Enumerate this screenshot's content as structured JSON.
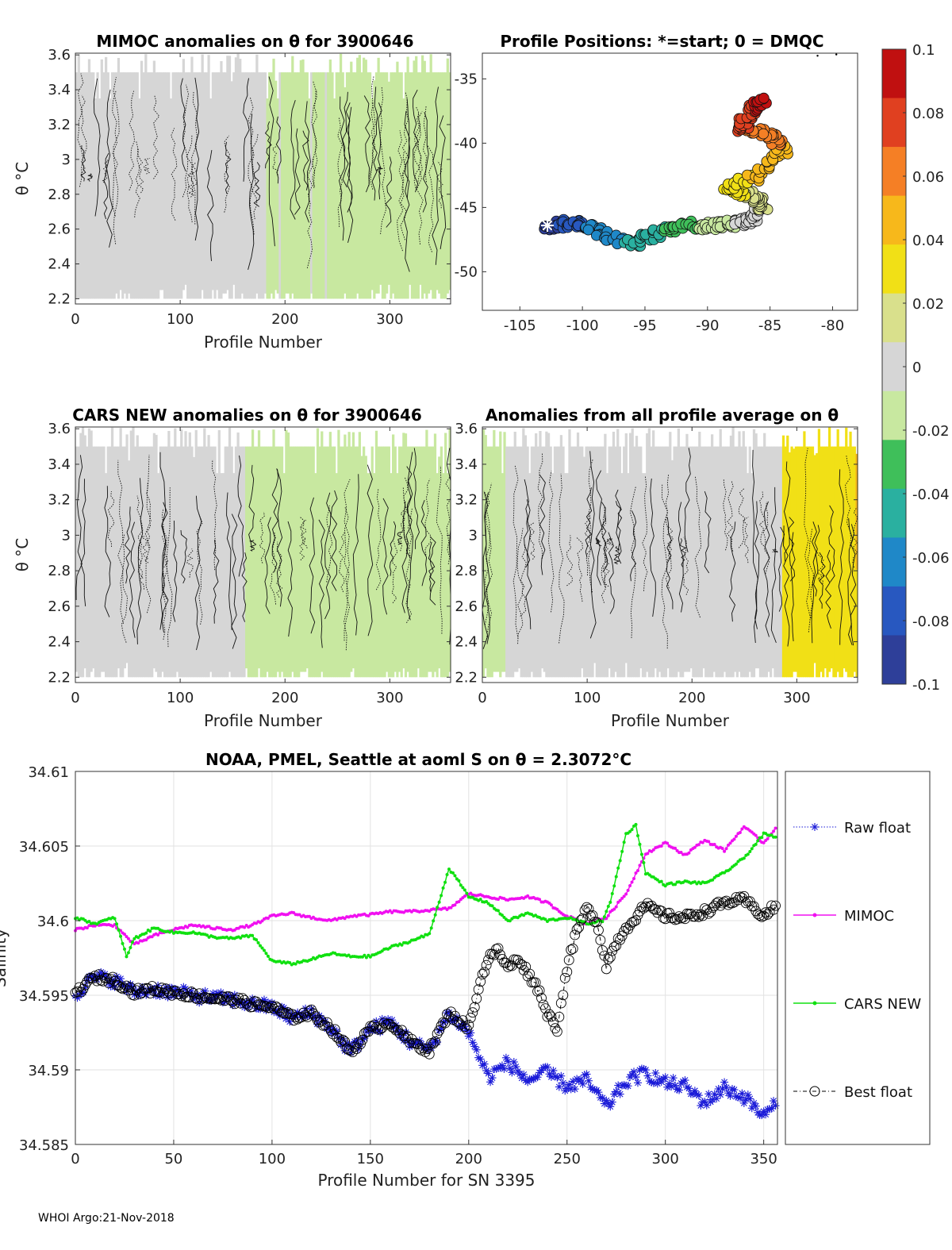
{
  "chart_data": [
    {
      "id": "mimoc",
      "type": "heatmap",
      "title": "MIMOC anomalies on θ  for 3900646",
      "xlabel": "Profile Number",
      "ylabel": "θ °C",
      "xlim": [
        0,
        358
      ],
      "ylim": [
        2.17,
        3.61
      ],
      "xticks": [
        0,
        100,
        200,
        300
      ],
      "yticks": [
        2.2,
        2.4,
        2.6,
        2.8,
        3,
        3.2,
        3.4,
        3.6
      ],
      "field_summary": [
        {
          "from": 0,
          "to": 180,
          "anomaly": 0.0
        },
        {
          "from": 180,
          "to": 300,
          "anomaly": -0.01
        },
        {
          "from": 300,
          "to": 358,
          "anomaly": -0.017
        }
      ]
    },
    {
      "id": "positions",
      "type": "scatter",
      "title": "Profile Positions: *=start; 0 = DMQC",
      "xlim": [
        -108,
        -78
      ],
      "ylim": [
        -53,
        -33
      ],
      "xticks": [
        -105,
        -100,
        -95,
        -90,
        -85,
        -80
      ],
      "yticks": [
        -35,
        -40,
        -45,
        -50
      ],
      "waypoints_lon": [
        -102.8,
        -101.5,
        -100,
        -98,
        -96,
        -94,
        -92,
        -90,
        -88,
        -86.5,
        -85.5,
        -86.8,
        -88.5,
        -86,
        -84,
        -85.2,
        -87.5,
        -86.5,
        -85.5
      ],
      "waypoints_lat": [
        -46.4,
        -46.3,
        -46.2,
        -47.2,
        -47.8,
        -47.0,
        -46.3,
        -46.5,
        -46.2,
        -46.0,
        -44.8,
        -44.0,
        -43.5,
        -42.5,
        -40.5,
        -39.2,
        -38.8,
        -37.5,
        -36.5
      ],
      "start_marker": [
        -102.8,
        -46.4
      ]
    },
    {
      "id": "cars",
      "type": "heatmap",
      "title": "CARS NEW anomalies on θ for 3900646",
      "xlabel": "Profile Number",
      "ylabel": "θ °C",
      "xlim": [
        0,
        358
      ],
      "ylim": [
        2.17,
        3.61
      ],
      "xticks": [
        0,
        100,
        200,
        300
      ],
      "yticks": [
        2.2,
        2.4,
        2.6,
        2.8,
        3,
        3.2,
        3.4,
        3.6
      ],
      "field_summary": [
        {
          "from": 0,
          "to": 160,
          "anomaly": 0.0
        },
        {
          "from": 160,
          "to": 358,
          "anomaly": -0.012
        }
      ]
    },
    {
      "id": "profileavg",
      "type": "heatmap",
      "title": "Anomalies from all profile average on θ",
      "xlabel": "Profile Number",
      "xlim": [
        0,
        358
      ],
      "ylim": [
        2.17,
        3.61
      ],
      "xticks": [
        0,
        100,
        200,
        300
      ],
      "yticks": [
        2.2,
        2.4,
        2.6,
        2.8,
        3,
        3.2,
        3.4,
        3.6
      ],
      "field_summary": [
        {
          "from": 0,
          "to": 20,
          "anomaly": -0.012
        },
        {
          "from": 20,
          "to": 285,
          "anomaly": 0.0
        },
        {
          "from": 285,
          "to": 358,
          "anomaly": 0.035
        }
      ]
    },
    {
      "id": "colorbar",
      "type": "colorbar",
      "clim": [
        -0.1,
        0.1
      ],
      "ticks": [
        "0.1",
        "0.08",
        "0.06",
        "0.04",
        "0.02",
        "0",
        "-0.02",
        "-0.04",
        "-0.06",
        "-0.08",
        "-0.1"
      ],
      "colors": [
        "#c01010",
        "#e04020",
        "#f57f25",
        "#f7b81b",
        "#f1e016",
        "#d9e08c",
        "#d6d6d6",
        "#c8e8a0",
        "#3fbf5a",
        "#2ab0a0",
        "#1f88c8",
        "#2858c0",
        "#2e3f99"
      ]
    },
    {
      "id": "salinity",
      "type": "line",
      "title": "NOAA, PMEL, Seattle at aoml S on θ = 2.3072°C",
      "xlabel": "Profile Number for SN 3395",
      "ylabel": "Salinity",
      "xlim": [
        0,
        357
      ],
      "ylim": [
        34.585,
        34.61
      ],
      "xticks": [
        0,
        50,
        100,
        150,
        200,
        250,
        300,
        350
      ],
      "yticks": [
        "34.585",
        "34.59",
        "34.595",
        "34.6",
        "34.605",
        "34.61"
      ],
      "grid": true,
      "legend_position": "right",
      "series": [
        {
          "name": "Raw float",
          "color": "#1a1ad8",
          "x": [
            0,
            5,
            10,
            20,
            30,
            40,
            50,
            60,
            70,
            80,
            90,
            100,
            110,
            120,
            130,
            140,
            150,
            160,
            170,
            180,
            190,
            200,
            210,
            220,
            230,
            240,
            250,
            260,
            270,
            280,
            290,
            300,
            310,
            320,
            330,
            340,
            350,
            356
          ],
          "y": [
            34.5951,
            34.5957,
            34.5962,
            34.596,
            34.5952,
            34.5954,
            34.5952,
            34.595,
            34.5948,
            34.5947,
            34.5944,
            34.5942,
            34.5935,
            34.5938,
            34.5928,
            34.5912,
            34.5927,
            34.5932,
            34.5919,
            34.5913,
            34.5938,
            34.5925,
            34.5895,
            34.5905,
            34.5893,
            34.5898,
            34.5889,
            34.5893,
            34.5875,
            34.5892,
            34.5898,
            34.5891,
            34.5889,
            34.5878,
            34.5888,
            34.5882,
            34.5869,
            34.5876
          ]
        },
        {
          "name": "MIMOC",
          "color": "#f010f0",
          "x": [
            0,
            10,
            20,
            30,
            40,
            50,
            60,
            70,
            80,
            90,
            100,
            110,
            120,
            130,
            140,
            150,
            160,
            170,
            180,
            190,
            200,
            210,
            220,
            230,
            240,
            250,
            260,
            270,
            280,
            290,
            300,
            310,
            320,
            330,
            340,
            350,
            356
          ],
          "y": [
            34.5994,
            34.5997,
            34.5997,
            34.5984,
            34.599,
            34.5994,
            34.5997,
            34.5995,
            34.5994,
            34.5997,
            34.6003,
            34.6005,
            34.6002,
            34.6,
            34.6003,
            34.6004,
            34.6006,
            34.6006,
            34.6007,
            34.6008,
            34.6018,
            34.6016,
            34.6014,
            34.6016,
            34.6012,
            34.6003,
            34.5998,
            34.6002,
            34.6018,
            34.6045,
            34.6052,
            34.6044,
            34.6054,
            34.6047,
            34.6063,
            34.6052,
            34.6062
          ]
        },
        {
          "name": "CARS NEW",
          "color": "#10e010",
          "x": [
            0,
            10,
            20,
            26,
            30,
            40,
            50,
            60,
            70,
            80,
            90,
            100,
            110,
            120,
            130,
            140,
            150,
            160,
            170,
            180,
            190,
            195,
            200,
            210,
            220,
            230,
            240,
            250,
            260,
            268,
            272,
            280,
            285,
            290,
            300,
            310,
            320,
            330,
            340,
            350,
            356
          ],
          "y": [
            34.6002,
            34.5998,
            34.6002,
            34.5976,
            34.5988,
            34.5995,
            34.5992,
            34.5992,
            34.5989,
            34.5988,
            34.599,
            34.5973,
            34.5971,
            34.5974,
            34.5978,
            34.5976,
            34.5976,
            34.5982,
            34.5986,
            34.5991,
            34.6035,
            34.6026,
            34.6016,
            34.6012,
            34.6,
            34.6005,
            34.6,
            34.6002,
            34.5998,
            34.6,
            34.6012,
            34.6058,
            34.6064,
            34.6032,
            34.6024,
            34.6026,
            34.6025,
            34.6032,
            34.6042,
            34.6058,
            34.6056
          ]
        },
        {
          "name": "Best float",
          "color": "#000000",
          "x": [
            0,
            5,
            10,
            20,
            30,
            40,
            50,
            60,
            70,
            80,
            90,
            100,
            110,
            120,
            130,
            140,
            150,
            160,
            170,
            180,
            190,
            200,
            205,
            210,
            215,
            220,
            225,
            230,
            235,
            240,
            245,
            250,
            255,
            260,
            265,
            270,
            275,
            280,
            290,
            300,
            310,
            320,
            330,
            340,
            350,
            356
          ],
          "y": [
            34.5951,
            34.5957,
            34.5962,
            34.596,
            34.5952,
            34.5954,
            34.5952,
            34.595,
            34.5948,
            34.5947,
            34.5944,
            34.5942,
            34.5935,
            34.5938,
            34.5928,
            34.5912,
            34.5927,
            34.5932,
            34.5919,
            34.5913,
            34.5938,
            34.5928,
            34.5955,
            34.5975,
            34.598,
            34.5968,
            34.5975,
            34.5965,
            34.5955,
            34.5938,
            34.5928,
            34.5968,
            34.5993,
            34.6008,
            34.6,
            34.597,
            34.5985,
            34.5995,
            34.601,
            34.6003,
            34.6002,
            34.6006,
            34.6012,
            34.6014,
            34.6003,
            34.601
          ]
        }
      ],
      "legend": [
        "Raw float",
        "MIMOC",
        "CARS NEW",
        "Best float"
      ]
    }
  ],
  "footer": "WHOI Argo:21-Nov-2018"
}
